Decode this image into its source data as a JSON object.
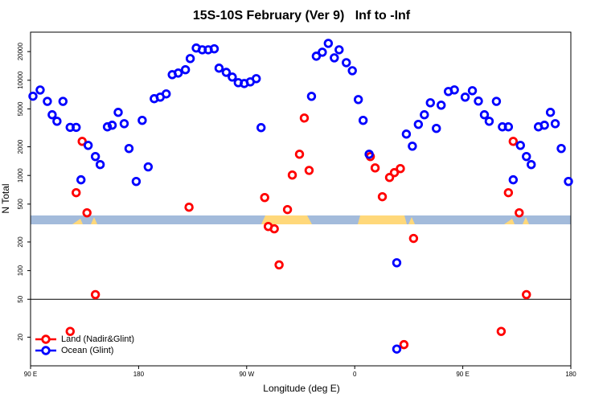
{
  "chart_data": {
    "type": "scatter",
    "title": "15S-10S February (Ver 9)   Inf to -Inf",
    "x_label": "Longitude (deg E)",
    "y_label": "N Total",
    "log_y": true,
    "legend": "lower left",
    "xlim": [
      90,
      540
    ],
    "xticks": [
      {
        "value": 90,
        "label": "90 E"
      },
      180,
      {
        "value": 270,
        "label": "90 W"
      },
      {
        "value": 360,
        "label": "0"
      },
      {
        "value": 450,
        "label": "90 E"
      },
      {
        "value": 540,
        "label": "180"
      }
    ],
    "ylim": [
      10,
      32000
    ],
    "yticks": [
      20,
      50,
      100,
      200,
      500,
      1000,
      2000,
      5000,
      10000,
      20000
    ],
    "hline": 50,
    "series": [
      {
        "name": "Land (Nadir&Glint)",
        "color": "#ff0000",
        "x": [
          123,
          128,
          133,
          137,
          144,
          222,
          285,
          288,
          293,
          297,
          304,
          308,
          314,
          318,
          322,
          373,
          377,
          383,
          389,
          393,
          398,
          401,
          409,
          482,
          488,
          492,
          497,
          503
        ],
        "values": [
          23,
          659,
          2280,
          405,
          56,
          464,
          586,
          291,
          275,
          115,
          438,
          1010,
          1670,
          4010,
          1130,
          1580,
          1200,
          598,
          952,
          1070,
          1180,
          16.7,
          218,
          23,
          659,
          2280,
          405,
          56
        ]
      },
      {
        "name": "Ocean (Glint)",
        "color": "#0000ff",
        "x": [
          92,
          98,
          104,
          108,
          112,
          117,
          123,
          128,
          132,
          138,
          144,
          148,
          154,
          158,
          163,
          168,
          172,
          178,
          183,
          188,
          193,
          198,
          203,
          208,
          213,
          219,
          223,
          228,
          233,
          238,
          243,
          247,
          253,
          258,
          263,
          268,
          273,
          278,
          282,
          324,
          328,
          333,
          338,
          343,
          347,
          353,
          358,
          363,
          367,
          372,
          395,
          395,
          403,
          408,
          413,
          418,
          423,
          428,
          432,
          438,
          443,
          452,
          458,
          463,
          468,
          472,
          478,
          483,
          488,
          492,
          498,
          503,
          507,
          513,
          518,
          523,
          527,
          532,
          538
        ],
        "values": [
          6800,
          7900,
          6000,
          4340,
          3710,
          6000,
          3200,
          3200,
          900,
          2070,
          1580,
          1300,
          3240,
          3370,
          4600,
          3500,
          1920,
          865,
          3790,
          1230,
          6400,
          6650,
          7190,
          11450,
          11900,
          12900,
          16900,
          21800,
          20900,
          20900,
          21400,
          13400,
          12100,
          10800,
          9430,
          9240,
          9620,
          10400,
          3180,
          6780,
          17900,
          19700,
          24400,
          17200,
          20900,
          15300,
          12600,
          6270,
          3790,
          1670,
          121,
          15,
          2720,
          2030,
          3440,
          4340,
          5800,
          3120,
          5470,
          7620,
          7920,
          6650,
          7770,
          6040,
          4340,
          3710,
          6000,
          3240,
          3240,
          900,
          2070,
          1580,
          1300,
          3240,
          3370,
          4600,
          3500,
          1920,
          865
        ]
      }
    ]
  }
}
